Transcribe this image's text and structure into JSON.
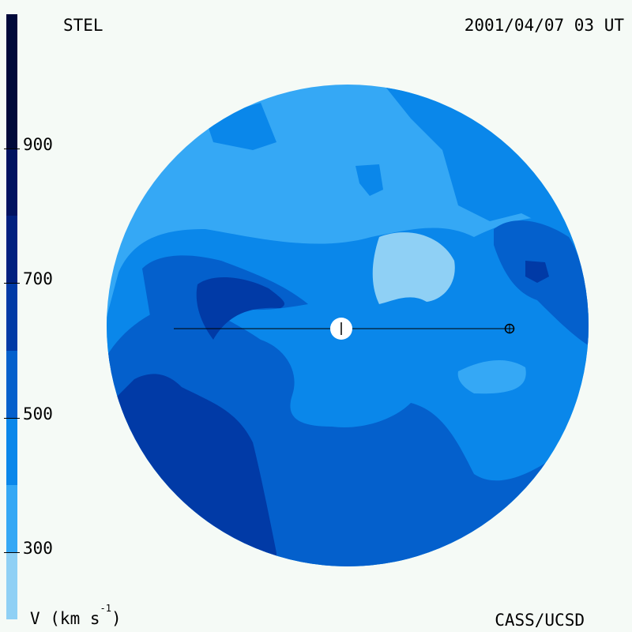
{
  "header": {
    "instrument": "STEL",
    "timestamp": "2001/04/07 03 UT"
  },
  "footer": {
    "units_prefix": "V (km s",
    "units_exp": "-1",
    "units_suffix": ")",
    "credit": "CASS/UCSD"
  },
  "colorbar": {
    "ticks": [
      {
        "label": "900",
        "value": 900
      },
      {
        "label": "700",
        "value": 700
      },
      {
        "label": "500",
        "value": 500
      },
      {
        "label": "300",
        "value": 300
      }
    ],
    "range": [
      200,
      1100
    ],
    "bands": [
      {
        "from": 200,
        "to": 300,
        "color": "#8fd0f5"
      },
      {
        "from": 300,
        "to": 400,
        "color": "#35a8f5"
      },
      {
        "from": 400,
        "to": 500,
        "color": "#0a87ea"
      },
      {
        "from": 500,
        "to": 600,
        "color": "#0460cc"
      },
      {
        "from": 600,
        "to": 700,
        "color": "#013aa6"
      },
      {
        "from": 700,
        "to": 800,
        "color": "#00207f"
      },
      {
        "from": 800,
        "to": 900,
        "color": "#001260"
      },
      {
        "from": 900,
        "to": 1100,
        "color": "#00093a"
      }
    ]
  },
  "map": {
    "description_colors": {
      "disk_background": "#35a8f5",
      "sun": "#ffffff",
      "earth_marker": "#000000"
    }
  }
}
